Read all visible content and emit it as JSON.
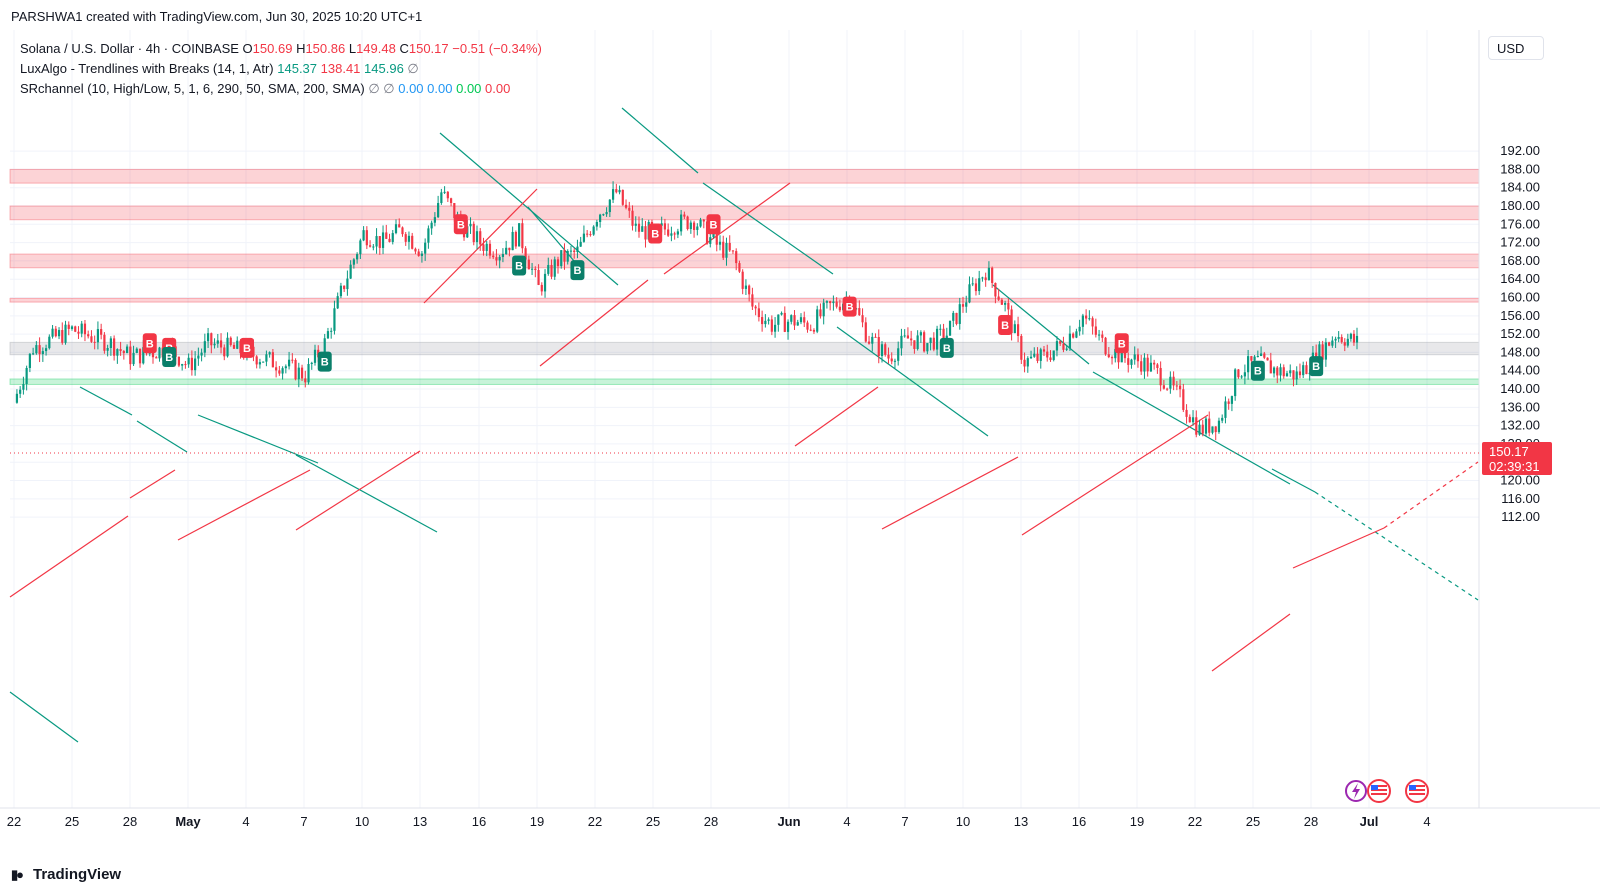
{
  "watermark": "PARSHWA1 created with TradingView.com, Jun 30, 2025 10:20 UTC+1",
  "legend": {
    "symbol": "Solana / U.S. Dollar · 4h · COINBASE",
    "o_label": "O",
    "o_value": "150.69",
    "h_label": "H",
    "h_value": "150.86",
    "l_label": "L",
    "l_value": "149.48",
    "c_label": "C",
    "c_value": "150.17",
    "change": "−0.51 (−0.34%)",
    "lux_name": "LuxAlgo - Trendlines with Breaks (14, 1, Atr)",
    "lux_v1": "145.37",
    "lux_v2": "138.41",
    "lux_v3": "145.96",
    "sr_name": "SRchannel (10, High/Low, 5, 1, 6, 290, 50, SMA, 200, SMA)",
    "sr_v1": "0.00",
    "sr_v2": "0.00",
    "sr_v3": "0.00",
    "sr_v4": "0.00",
    "na_symbol": "∅"
  },
  "currency": "USD",
  "price_tag": {
    "price": "150.17",
    "countdown": "02:39:31"
  },
  "brand": "TradingView",
  "icons": [
    "lightning-icon",
    "us-flag-icon",
    "us-flag-icon"
  ],
  "colors": {
    "up": "#089981",
    "down": "#f23645",
    "resistance_zone": "#f23645",
    "support_zone": "#00c853",
    "neutral_zone": "#9598a1",
    "down_trendline": "#089981",
    "up_trendline": "#f23645"
  },
  "chart_data": {
    "type": "candlestick",
    "timeframe": "4h",
    "symbol": "SOL/USD",
    "ylim": [
      110,
      193
    ],
    "y_ticks": [
      "112.00",
      "116.00",
      "120.00",
      "124.00",
      "128.00",
      "132.00",
      "136.00",
      "140.00",
      "144.00",
      "148.00",
      "152.00",
      "156.00",
      "160.00",
      "164.00",
      "168.00",
      "172.00",
      "176.00",
      "180.00",
      "184.00",
      "188.00",
      "192.00"
    ],
    "x_ticks": [
      "22",
      "25",
      "28",
      "May",
      "4",
      "7",
      "10",
      "13",
      "16",
      "19",
      "22",
      "25",
      "28",
      "Jun",
      "4",
      "7",
      "10",
      "13",
      "16",
      "19",
      "22",
      "25",
      "28",
      "Jul",
      "4"
    ],
    "grid": true,
    "close_path": [
      {
        "x": "2025-04-22",
        "y": 137
      },
      {
        "x": "2025-04-23",
        "y": 149
      },
      {
        "x": "2025-04-25",
        "y": 153
      },
      {
        "x": "2025-04-27",
        "y": 150
      },
      {
        "x": "2025-04-28",
        "y": 147
      },
      {
        "x": "2025-04-30",
        "y": 149
      },
      {
        "x": "2025-05-01",
        "y": 145
      },
      {
        "x": "2025-05-02",
        "y": 150
      },
      {
        "x": "2025-05-04",
        "y": 148
      },
      {
        "x": "2025-05-06",
        "y": 145
      },
      {
        "x": "2025-05-07",
        "y": 143
      },
      {
        "x": "2025-05-08",
        "y": 150
      },
      {
        "x": "2025-05-09",
        "y": 163
      },
      {
        "x": "2025-05-10",
        "y": 174
      },
      {
        "x": "2025-05-11",
        "y": 172
      },
      {
        "x": "2025-05-12",
        "y": 175
      },
      {
        "x": "2025-05-13",
        "y": 170
      },
      {
        "x": "2025-05-14",
        "y": 183
      },
      {
        "x": "2025-05-15",
        "y": 176
      },
      {
        "x": "2025-05-16",
        "y": 172
      },
      {
        "x": "2025-05-17",
        "y": 170
      },
      {
        "x": "2025-05-18",
        "y": 174
      },
      {
        "x": "2025-05-19",
        "y": 162
      },
      {
        "x": "2025-05-20",
        "y": 168
      },
      {
        "x": "2025-05-21",
        "y": 170
      },
      {
        "x": "2025-05-22",
        "y": 178
      },
      {
        "x": "2025-05-23",
        "y": 183
      },
      {
        "x": "2025-05-24",
        "y": 175
      },
      {
        "x": "2025-05-25",
        "y": 174
      },
      {
        "x": "2025-05-26",
        "y": 176
      },
      {
        "x": "2025-05-27",
        "y": 177
      },
      {
        "x": "2025-05-28",
        "y": 172
      },
      {
        "x": "2025-05-29",
        "y": 169
      },
      {
        "x": "2025-05-30",
        "y": 158
      },
      {
        "x": "2025-05-31",
        "y": 154
      },
      {
        "x": "2025-06-01",
        "y": 155
      },
      {
        "x": "2025-06-02",
        "y": 154
      },
      {
        "x": "2025-06-03",
        "y": 158
      },
      {
        "x": "2025-06-04",
        "y": 160
      },
      {
        "x": "2025-06-05",
        "y": 151
      },
      {
        "x": "2025-06-06",
        "y": 147
      },
      {
        "x": "2025-06-07",
        "y": 151
      },
      {
        "x": "2025-06-08",
        "y": 150
      },
      {
        "x": "2025-06-09",
        "y": 152
      },
      {
        "x": "2025-06-10",
        "y": 160
      },
      {
        "x": "2025-06-11",
        "y": 166
      },
      {
        "x": "2025-06-12",
        "y": 158
      },
      {
        "x": "2025-06-13",
        "y": 146
      },
      {
        "x": "2025-06-14",
        "y": 147
      },
      {
        "x": "2025-06-15",
        "y": 150
      },
      {
        "x": "2025-06-16",
        "y": 156
      },
      {
        "x": "2025-06-17",
        "y": 150
      },
      {
        "x": "2025-06-18",
        "y": 147
      },
      {
        "x": "2025-06-19",
        "y": 146
      },
      {
        "x": "2025-06-20",
        "y": 143
      },
      {
        "x": "2025-06-21",
        "y": 138
      },
      {
        "x": "2025-06-22",
        "y": 131
      },
      {
        "x": "2025-06-23",
        "y": 133
      },
      {
        "x": "2025-06-24",
        "y": 144
      },
      {
        "x": "2025-06-25",
        "y": 146
      },
      {
        "x": "2025-06-26",
        "y": 144
      },
      {
        "x": "2025-06-27",
        "y": 143
      },
      {
        "x": "2025-06-28",
        "y": 147
      },
      {
        "x": "2025-06-29",
        "y": 152
      },
      {
        "x": "2025-06-30",
        "y": 150.17
      }
    ],
    "zones": [
      {
        "kind": "resistance",
        "from": 185,
        "to": 188
      },
      {
        "kind": "resistance",
        "from": 177,
        "to": 180
      },
      {
        "kind": "resistance",
        "from": 166.5,
        "to": 169.5
      },
      {
        "kind": "resistance",
        "from": 159,
        "to": 159.8
      },
      {
        "kind": "neutral",
        "from": 147.5,
        "to": 150.2
      },
      {
        "kind": "support",
        "from": 141,
        "to": 142.2
      }
    ],
    "signals": [
      {
        "x": "2025-04-29",
        "y": 150,
        "label": "B",
        "kind": "sell"
      },
      {
        "x": "2025-04-30",
        "y": 149,
        "label": "B",
        "kind": "sell"
      },
      {
        "x": "2025-04-30",
        "y": 147,
        "label": "B",
        "kind": "buy"
      },
      {
        "x": "2025-05-04",
        "y": 149,
        "label": "B",
        "kind": "sell"
      },
      {
        "x": "2025-05-08",
        "y": 146,
        "label": "B",
        "kind": "buy"
      },
      {
        "x": "2025-05-15",
        "y": 176,
        "label": "B",
        "kind": "sell"
      },
      {
        "x": "2025-05-18",
        "y": 167,
        "label": "B",
        "kind": "buy"
      },
      {
        "x": "2025-05-21",
        "y": 166,
        "label": "B",
        "kind": "buy"
      },
      {
        "x": "2025-05-25",
        "y": 174,
        "label": "B",
        "kind": "sell"
      },
      {
        "x": "2025-05-28",
        "y": 176,
        "label": "B",
        "kind": "sell"
      },
      {
        "x": "2025-06-04",
        "y": 158,
        "label": "B",
        "kind": "sell"
      },
      {
        "x": "2025-06-09",
        "y": 149,
        "label": "B",
        "kind": "buy"
      },
      {
        "x": "2025-06-12",
        "y": 154,
        "label": "B",
        "kind": "sell"
      },
      {
        "x": "2025-06-18",
        "y": 150,
        "label": "B",
        "kind": "sell"
      },
      {
        "x": "2025-06-25",
        "y": 144,
        "label": "B",
        "kind": "buy"
      },
      {
        "x": "2025-06-28",
        "y": 145,
        "label": "B",
        "kind": "buy"
      }
    ],
    "last_price": 150.17
  }
}
